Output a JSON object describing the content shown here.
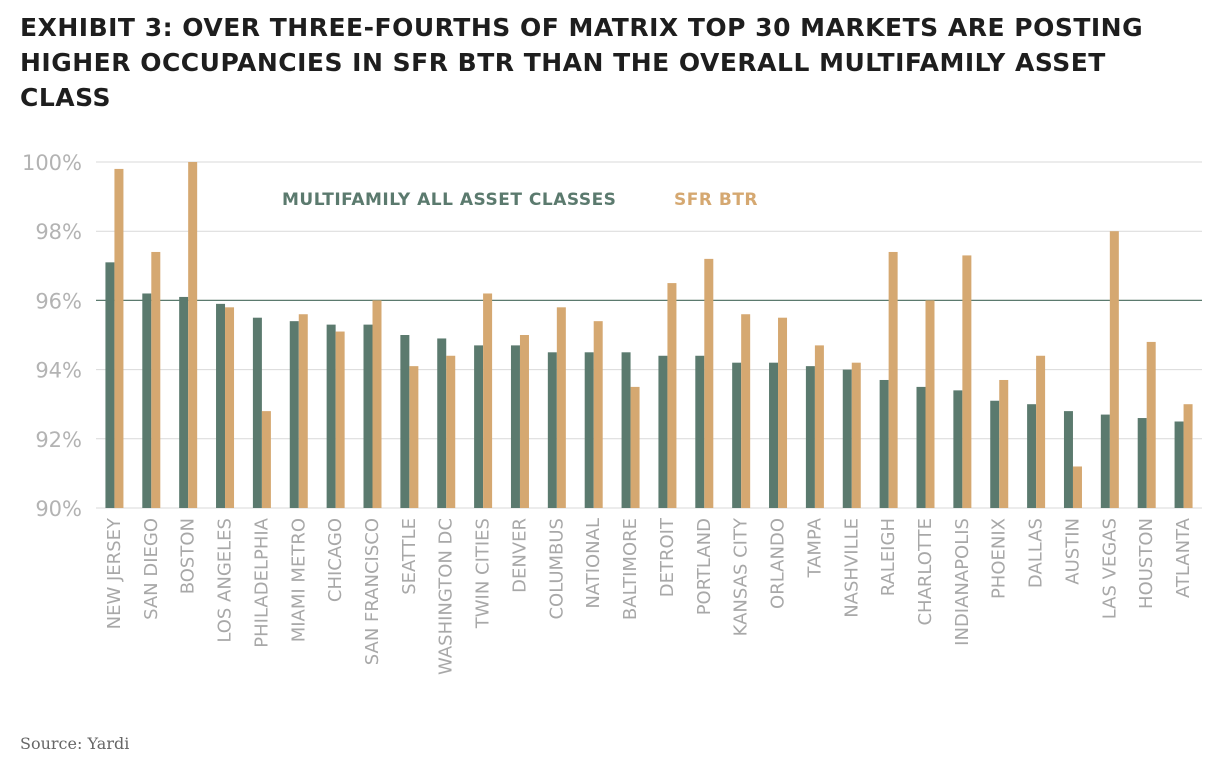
{
  "title": "EXHIBIT 3: OVER THREE-FOURTHS OF MATRIX TOP 30 MARKETS ARE POSTING HIGHER OCCUPANCIES IN SFR BTR THAN THE OVERALL MULTIFAMILY ASSET CLASS",
  "source": "Source: Yardi",
  "colors": {
    "multifamily": "#5b7a6e",
    "sfr_btr": "#d5a871",
    "grid": "#d9d9d9",
    "reference_line": "#5b7a6e"
  },
  "chart_data": {
    "type": "bar",
    "categories": [
      "NEW JERSEY",
      "SAN DIEGO",
      "BOSTON",
      "LOS ANGELES",
      "PHILADELPHIA",
      "MIAMI METRO",
      "CHICAGO",
      "SAN FRANCISCO",
      "SEATTLE",
      "WASHINGTON DC",
      "TWIN CITIES",
      "DENVER",
      "COLUMBUS",
      "NATIONAL",
      "BALTIMORE",
      "DETROIT",
      "PORTLAND",
      "KANSAS CITY",
      "ORLANDO",
      "TAMPA",
      "NASHVILLE",
      "RALEIGH",
      "CHARLOTTE",
      "INDIANAPOLIS",
      "PHOENIX",
      "DALLAS",
      "AUSTIN",
      "LAS VEGAS",
      "HOUSTON",
      "ATLANTA"
    ],
    "series": [
      {
        "name": "MULTIFAMILY ALL ASSET CLASSES",
        "values": [
          97.1,
          96.2,
          96.1,
          95.9,
          95.5,
          95.4,
          95.3,
          95.3,
          95.0,
          94.9,
          94.7,
          94.7,
          94.5,
          94.5,
          94.5,
          94.4,
          94.4,
          94.2,
          94.2,
          94.1,
          94.0,
          93.7,
          93.5,
          93.4,
          93.1,
          93.0,
          92.8,
          92.7,
          92.6,
          92.5
        ]
      },
      {
        "name": "SFR BTR",
        "values": [
          99.8,
          97.4,
          100.0,
          95.8,
          92.8,
          95.6,
          95.1,
          96.0,
          94.1,
          94.4,
          96.2,
          95.0,
          95.8,
          95.4,
          93.5,
          96.5,
          97.2,
          95.6,
          95.5,
          94.7,
          94.2,
          97.4,
          96.0,
          97.3,
          93.7,
          94.4,
          91.2,
          98.0,
          94.8,
          93.0
        ]
      }
    ],
    "yticks": [
      "90%",
      "92%",
      "94%",
      "96%",
      "98%",
      "100%"
    ],
    "ylim": [
      90,
      100
    ],
    "reference_line": 96,
    "grid": true,
    "legend_position": "top-left"
  }
}
